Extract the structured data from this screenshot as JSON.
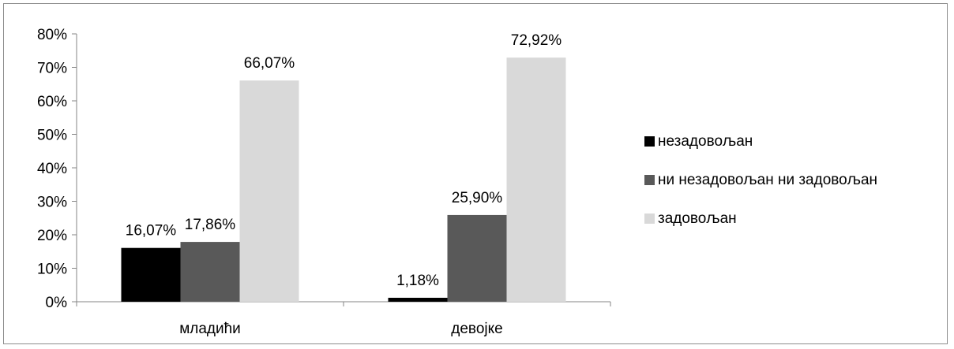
{
  "chart_data": {
    "type": "bar",
    "categories": [
      "младићи",
      "девојке"
    ],
    "series": [
      {
        "name": "незадовољан",
        "values": [
          16.07,
          1.18
        ],
        "labels": [
          "16,07%",
          "1,18%"
        ],
        "color": "#000000"
      },
      {
        "name": "ни незадовољан ни задовољан",
        "values": [
          17.86,
          25.9
        ],
        "labels": [
          "17,86%",
          "25,90%"
        ],
        "color": "#595959"
      },
      {
        "name": "задовољан",
        "values": [
          66.07,
          72.92
        ],
        "labels": [
          "66,07%",
          "72,92%"
        ],
        "color": "#d9d9d9"
      }
    ],
    "ylim": [
      0,
      80
    ],
    "yticks": [
      "0%",
      "10%",
      "20%",
      "30%",
      "40%",
      "50%",
      "60%",
      "70%",
      "80%"
    ],
    "title": "",
    "xlabel": "",
    "ylabel": "",
    "grid": false,
    "legend_position": "right"
  }
}
